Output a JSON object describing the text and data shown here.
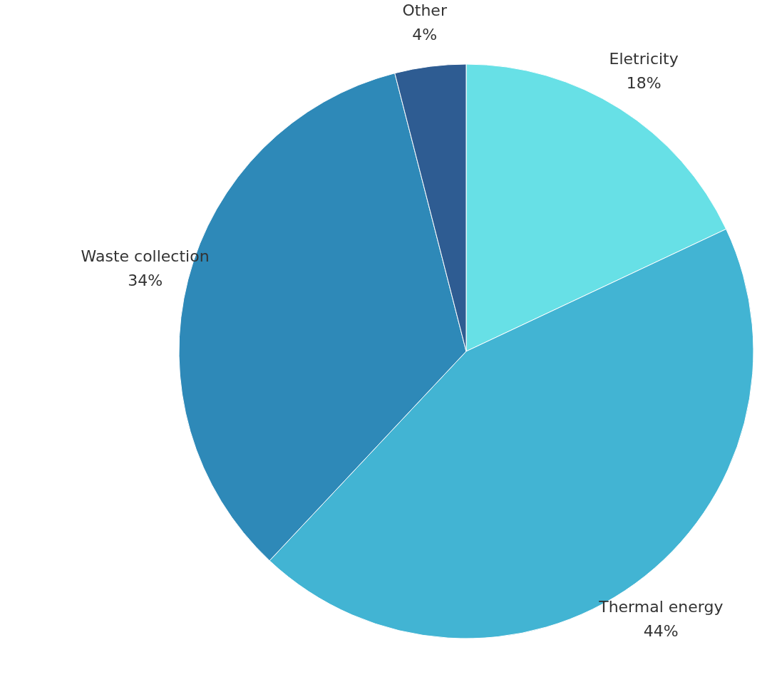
{
  "chart_data": {
    "type": "pie",
    "categories": [
      "Eletricity",
      "Thermal energy",
      "Waste collection",
      "Other"
    ],
    "values": [
      18,
      44,
      34,
      4
    ],
    "value_labels": [
      "18%",
      "44%",
      "34%",
      "4%"
    ],
    "colors": [
      "#67e0e6",
      "#42b4d3",
      "#2e89b8",
      "#2e5c92"
    ]
  }
}
